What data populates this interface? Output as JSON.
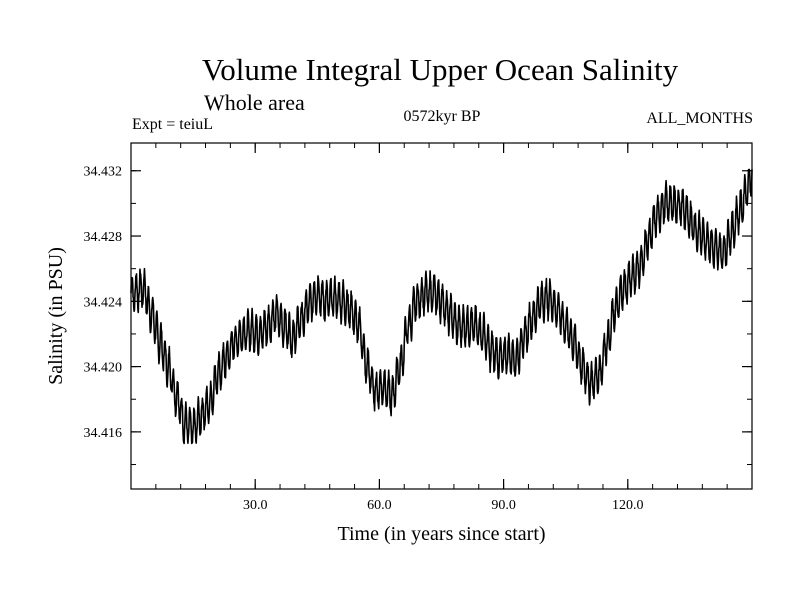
{
  "chart_data": {
    "type": "line",
    "title": "Volume Integral Upper Ocean Salinity",
    "subtitle": "Whole area",
    "experiment_label": "Expt = teiuL",
    "period_label": "0572kyr BP",
    "months_label": "ALL_MONTHS",
    "xlabel": "Time (in years since start)",
    "ylabel": "Salinity (in PSU)",
    "xlim": [
      0,
      150
    ],
    "ylim": [
      34.4125,
      34.4337
    ],
    "xticks": [
      30,
      60,
      90,
      120
    ],
    "xtick_labels": [
      "30.0",
      "60.0",
      "90.0",
      "120.0"
    ],
    "xminor_step": 6,
    "yticks": [
      34.416,
      34.42,
      34.424,
      34.428,
      34.432
    ],
    "ytick_labels": [
      "34.416",
      "34.420",
      "34.424",
      "34.428",
      "34.432"
    ],
    "yminor_step": 0.002,
    "samples_per_year": 12,
    "seasonal_amplitude": 0.0011,
    "series": [
      {
        "name": "Salinity",
        "color": "#000000",
        "trend_points": [
          [
            0,
            34.4245
          ],
          [
            3,
            34.4248
          ],
          [
            5,
            34.4232
          ],
          [
            7,
            34.4215
          ],
          [
            9,
            34.42
          ],
          [
            11,
            34.4182
          ],
          [
            13,
            34.4165
          ],
          [
            15,
            34.4162
          ],
          [
            17,
            34.417
          ],
          [
            19,
            34.4178
          ],
          [
            21,
            34.4195
          ],
          [
            23,
            34.4205
          ],
          [
            25,
            34.4215
          ],
          [
            27,
            34.422
          ],
          [
            29,
            34.4222
          ],
          [
            31,
            34.422
          ],
          [
            33,
            34.4225
          ],
          [
            35,
            34.4232
          ],
          [
            37,
            34.4225
          ],
          [
            39,
            34.4218
          ],
          [
            41,
            34.4228
          ],
          [
            43,
            34.4238
          ],
          [
            45,
            34.4245
          ],
          [
            47,
            34.424
          ],
          [
            49,
            34.4242
          ],
          [
            51,
            34.424
          ],
          [
            53,
            34.4235
          ],
          [
            55,
            34.4225
          ],
          [
            57,
            34.42
          ],
          [
            59,
            34.4185
          ],
          [
            61,
            34.4188
          ],
          [
            63,
            34.4182
          ],
          [
            65,
            34.42
          ],
          [
            67,
            34.4225
          ],
          [
            69,
            34.424
          ],
          [
            71,
            34.4245
          ],
          [
            73,
            34.4245
          ],
          [
            75,
            34.424
          ],
          [
            77,
            34.4232
          ],
          [
            79,
            34.4225
          ],
          [
            81,
            34.4225
          ],
          [
            83,
            34.4225
          ],
          [
            85,
            34.422
          ],
          [
            87,
            34.421
          ],
          [
            89,
            34.4205
          ],
          [
            91,
            34.4208
          ],
          [
            93,
            34.4205
          ],
          [
            95,
            34.4218
          ],
          [
            97,
            34.423
          ],
          [
            99,
            34.424
          ],
          [
            101,
            34.4242
          ],
          [
            103,
            34.4235
          ],
          [
            105,
            34.4225
          ],
          [
            107,
            34.4215
          ],
          [
            109,
            34.42
          ],
          [
            111,
            34.419
          ],
          [
            113,
            34.4195
          ],
          [
            115,
            34.4215
          ],
          [
            117,
            34.4235
          ],
          [
            119,
            34.4248
          ],
          [
            121,
            34.4255
          ],
          [
            123,
            34.4262
          ],
          [
            125,
            34.4278
          ],
          [
            127,
            34.4292
          ],
          [
            129,
            34.43
          ],
          [
            131,
            34.43
          ],
          [
            133,
            34.4298
          ],
          [
            135,
            34.429
          ],
          [
            137,
            34.4282
          ],
          [
            139,
            34.4278
          ],
          [
            141,
            34.4272
          ],
          [
            143,
            34.427
          ],
          [
            145,
            34.4282
          ],
          [
            147,
            34.4295
          ],
          [
            149,
            34.431
          ],
          [
            150,
            34.4318
          ]
        ]
      }
    ]
  }
}
